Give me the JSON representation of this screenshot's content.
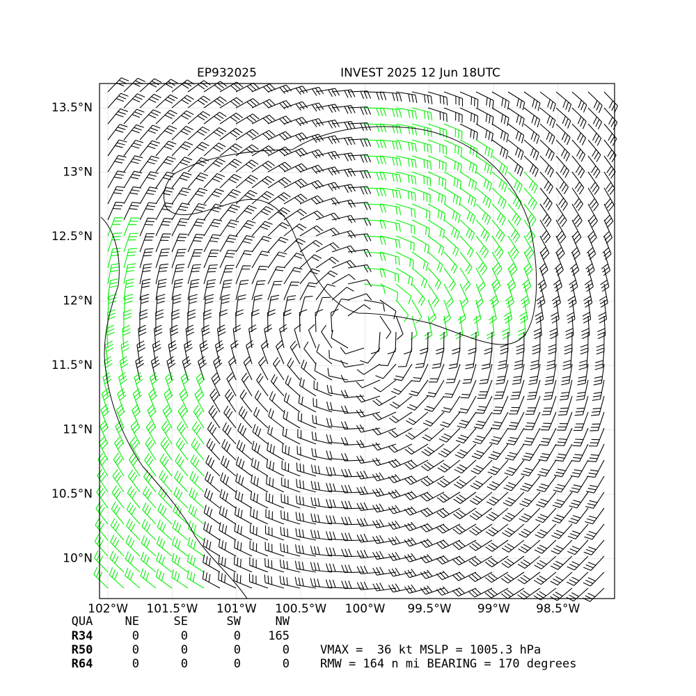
{
  "chart_data": {
    "type": "wind-barb-map",
    "title_left": "EP932025",
    "title_right": "INVEST 2025 12 Jun 18UTC",
    "xlim": [
      -102.065,
      -98.06
    ],
    "ylim": [
      9.69,
      13.69
    ],
    "xticks": [
      {
        "value": -102,
        "label": "102°W"
      },
      {
        "value": -101.5,
        "label": "101.5°W"
      },
      {
        "value": -101,
        "label": "101°W"
      },
      {
        "value": -100.5,
        "label": "100.5°W"
      },
      {
        "value": -100,
        "label": "100°W"
      },
      {
        "value": -99.5,
        "label": "99.5°W"
      },
      {
        "value": -99,
        "label": "99°W"
      },
      {
        "value": -98.5,
        "label": "98.5°W"
      }
    ],
    "yticks": [
      {
        "value": 10,
        "label": "10°N"
      },
      {
        "value": 10.5,
        "label": "10.5°N"
      },
      {
        "value": 11,
        "label": "11°N"
      },
      {
        "value": 11.5,
        "label": "11.5°N"
      },
      {
        "value": 12,
        "label": "12°N"
      },
      {
        "value": 12.5,
        "label": "12.5°N"
      },
      {
        "value": 13,
        "label": "13°N"
      },
      {
        "value": 13.5,
        "label": "13.5°N"
      }
    ],
    "grid": true,
    "table": {
      "header": [
        "QUA",
        "NE",
        "SE",
        "SW",
        "NW"
      ],
      "rows": [
        [
          "R34",
          0,
          0,
          0,
          165
        ],
        [
          "R50",
          0,
          0,
          0,
          0
        ],
        [
          "R64",
          0,
          0,
          0,
          0
        ]
      ]
    },
    "summary": [
      "VMAX =  36 kt MSLP = 1005.3 hPa",
      "RMW = 164 n mi BEARING = 170 degrees"
    ]
  }
}
